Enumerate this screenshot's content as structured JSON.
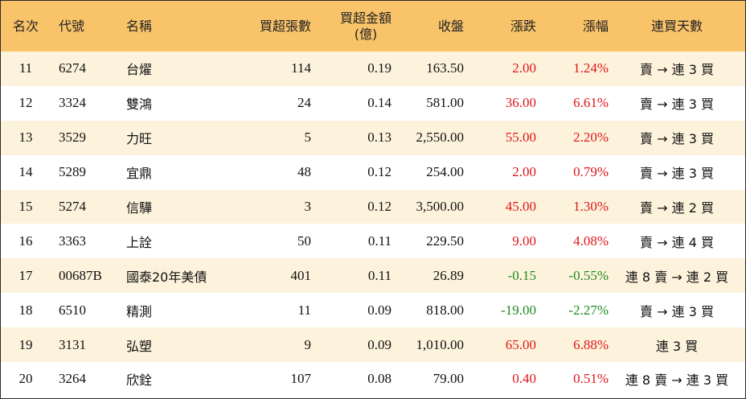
{
  "header": {
    "rank": "名次",
    "code": "代號",
    "name": "名稱",
    "net_buy_lots": "買超張數",
    "net_buy_amount_line1": "買超金額",
    "net_buy_amount_line2": "(億)",
    "close": "收盤",
    "change": "漲跌",
    "change_pct": "漲幅",
    "streak": "連買天數"
  },
  "colors": {
    "header_bg": "#f9c36a",
    "odd_row_bg": "#fdf3dc",
    "up": "#e0161b",
    "down": "#1f8a1f"
  },
  "rows": [
    {
      "rank": "11",
      "code": "6274",
      "name": "台燿",
      "lots": "114",
      "amount": "0.19",
      "close": "163.50",
      "change": "2.00",
      "pct": "1.24%",
      "streak": "賣 → 連 3 買",
      "dir": "up"
    },
    {
      "rank": "12",
      "code": "3324",
      "name": "雙鴻",
      "lots": "24",
      "amount": "0.14",
      "close": "581.00",
      "change": "36.00",
      "pct": "6.61%",
      "streak": "賣 → 連 3 買",
      "dir": "up"
    },
    {
      "rank": "13",
      "code": "3529",
      "name": "力旺",
      "lots": "5",
      "amount": "0.13",
      "close": "2,550.00",
      "change": "55.00",
      "pct": "2.20%",
      "streak": "賣 → 連 3 買",
      "dir": "up"
    },
    {
      "rank": "14",
      "code": "5289",
      "name": "宜鼎",
      "lots": "48",
      "amount": "0.12",
      "close": "254.00",
      "change": "2.00",
      "pct": "0.79%",
      "streak": "賣 → 連 3 買",
      "dir": "up"
    },
    {
      "rank": "15",
      "code": "5274",
      "name": "信驊",
      "lots": "3",
      "amount": "0.12",
      "close": "3,500.00",
      "change": "45.00",
      "pct": "1.30%",
      "streak": "賣 → 連 2 買",
      "dir": "up"
    },
    {
      "rank": "16",
      "code": "3363",
      "name": "上詮",
      "lots": "50",
      "amount": "0.11",
      "close": "229.50",
      "change": "9.00",
      "pct": "4.08%",
      "streak": "賣 → 連 4 買",
      "dir": "up"
    },
    {
      "rank": "17",
      "code": "00687B",
      "name": "國泰20年美債",
      "lots": "401",
      "amount": "0.11",
      "close": "26.89",
      "change": "-0.15",
      "pct": "-0.55%",
      "streak": "連 8 賣 → 連 2 買",
      "dir": "down"
    },
    {
      "rank": "18",
      "code": "6510",
      "name": "精測",
      "lots": "11",
      "amount": "0.09",
      "close": "818.00",
      "change": "-19.00",
      "pct": "-2.27%",
      "streak": "賣 → 連 3 買",
      "dir": "down"
    },
    {
      "rank": "19",
      "code": "3131",
      "name": "弘塑",
      "lots": "9",
      "amount": "0.09",
      "close": "1,010.00",
      "change": "65.00",
      "pct": "6.88%",
      "streak": "連 3 買",
      "dir": "up"
    },
    {
      "rank": "20",
      "code": "3264",
      "name": "欣銓",
      "lots": "107",
      "amount": "0.08",
      "close": "79.00",
      "change": "0.40",
      "pct": "0.51%",
      "streak": "連 8 賣 → 連 3 買",
      "dir": "up"
    }
  ]
}
